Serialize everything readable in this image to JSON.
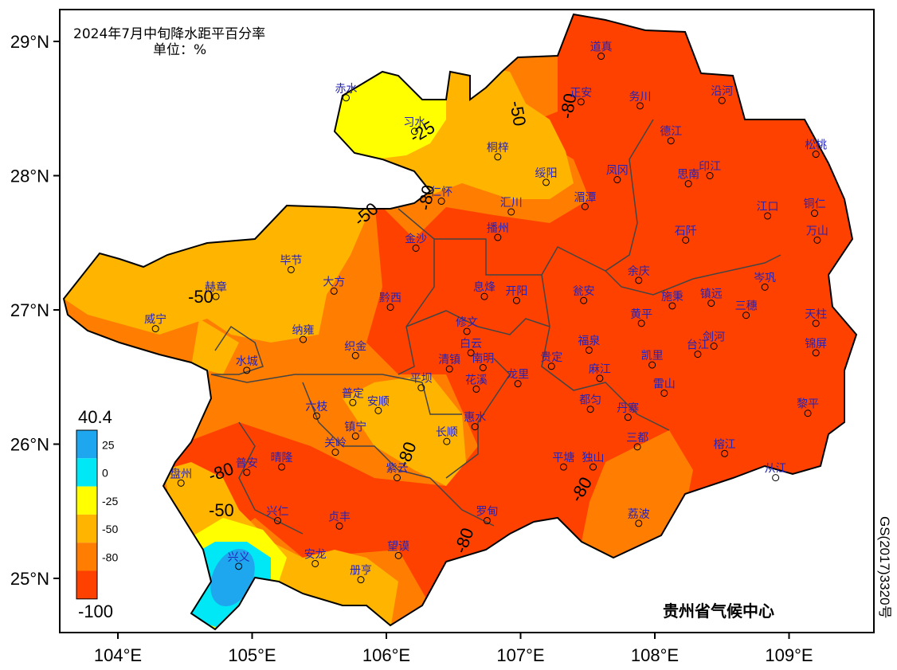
{
  "title": "2024年7月中旬降水距平百分率",
  "unit": "单位：%",
  "organization": "贵州省气候中心",
  "approval_number": "GS(2017)3320号",
  "latitude_labels": [
    "29°N",
    "28°N",
    "27°N",
    "26°N",
    "25°N"
  ],
  "longitude_labels": [
    "104°E",
    "105°E",
    "106°E",
    "107°E",
    "108°E",
    "109°E"
  ],
  "legend": {
    "max": "40.4",
    "min": "-100",
    "ticks": [
      "25",
      "0",
      "-25",
      "-50",
      "-80"
    ],
    "colors": [
      "#1ea7ee",
      "#00e8f5",
      "#ffff00",
      "#ffb400",
      "#ff7d00",
      "#ff4100"
    ]
  },
  "contour_labels": [
    "-50",
    "-80",
    "-25",
    "-80",
    "-50",
    "-50",
    "-80",
    "-50",
    "-80",
    "-80",
    "-80"
  ],
  "stations": [
    {
      "name": "道真",
      "lon": 107.6,
      "lat": 28.89
    },
    {
      "name": "赤水",
      "lon": 105.7,
      "lat": 28.58
    },
    {
      "name": "正安",
      "lon": 107.45,
      "lat": 28.55
    },
    {
      "name": "务川",
      "lon": 107.89,
      "lat": 28.52
    },
    {
      "name": "沿河",
      "lon": 108.5,
      "lat": 28.56
    },
    {
      "name": "习水",
      "lon": 106.21,
      "lat": 28.33
    },
    {
      "name": "德江",
      "lon": 108.12,
      "lat": 28.26
    },
    {
      "name": "松桃",
      "lon": 109.2,
      "lat": 28.16
    },
    {
      "name": "桐梓",
      "lon": 106.83,
      "lat": 28.14
    },
    {
      "name": "绥阳",
      "lon": 107.19,
      "lat": 27.95
    },
    {
      "name": "凤冈",
      "lon": 107.72,
      "lat": 27.97
    },
    {
      "name": "印江",
      "lon": 108.41,
      "lat": 28.0
    },
    {
      "name": "思南",
      "lon": 108.25,
      "lat": 27.94
    },
    {
      "name": "仁怀",
      "lon": 106.41,
      "lat": 27.81
    },
    {
      "name": "汇川",
      "lon": 106.93,
      "lat": 27.73
    },
    {
      "name": "湄潭",
      "lon": 107.48,
      "lat": 27.77
    },
    {
      "name": "江口",
      "lon": 108.84,
      "lat": 27.7
    },
    {
      "name": "铜仁",
      "lon": 109.19,
      "lat": 27.72
    },
    {
      "name": "金沙",
      "lon": 106.22,
      "lat": 27.46
    },
    {
      "name": "播州",
      "lon": 106.83,
      "lat": 27.54
    },
    {
      "name": "石阡",
      "lon": 108.23,
      "lat": 27.52
    },
    {
      "name": "万山",
      "lon": 109.21,
      "lat": 27.52
    },
    {
      "name": "毕节",
      "lon": 105.29,
      "lat": 27.3
    },
    {
      "name": "余庆",
      "lon": 107.88,
      "lat": 27.22
    },
    {
      "name": "岑巩",
      "lon": 108.82,
      "lat": 27.17
    },
    {
      "name": "赫章",
      "lon": 104.73,
      "lat": 27.1
    },
    {
      "name": "大方",
      "lon": 105.61,
      "lat": 27.14
    },
    {
      "name": "黔西",
      "lon": 106.03,
      "lat": 27.02
    },
    {
      "name": "息烽",
      "lon": 106.73,
      "lat": 27.1
    },
    {
      "name": "开阳",
      "lon": 106.97,
      "lat": 27.07
    },
    {
      "name": "瓮安",
      "lon": 107.47,
      "lat": 27.07
    },
    {
      "name": "施秉",
      "lon": 108.13,
      "lat": 27.03
    },
    {
      "name": "镇远",
      "lon": 108.42,
      "lat": 27.05
    },
    {
      "name": "三穗",
      "lon": 108.68,
      "lat": 26.96
    },
    {
      "name": "天柱",
      "lon": 109.2,
      "lat": 26.9
    },
    {
      "name": "威宁",
      "lon": 104.28,
      "lat": 26.86
    },
    {
      "name": "黄平",
      "lon": 107.9,
      "lat": 26.9
    },
    {
      "name": "修文",
      "lon": 106.6,
      "lat": 26.84
    },
    {
      "name": "纳雍",
      "lon": 105.38,
      "lat": 26.78
    },
    {
      "name": "福泉",
      "lon": 107.51,
      "lat": 26.7
    },
    {
      "name": "剑河",
      "lon": 108.44,
      "lat": 26.73
    },
    {
      "name": "台江",
      "lon": 108.32,
      "lat": 26.67
    },
    {
      "name": "织金",
      "lon": 105.77,
      "lat": 26.66
    },
    {
      "name": "白云",
      "lon": 106.63,
      "lat": 26.68
    },
    {
      "name": "南明",
      "lon": 106.72,
      "lat": 26.57
    },
    {
      "name": "清镇",
      "lon": 106.47,
      "lat": 26.56
    },
    {
      "name": "水城",
      "lon": 104.96,
      "lat": 26.55
    },
    {
      "name": "贵定",
      "lon": 107.23,
      "lat": 26.58
    },
    {
      "name": "凯里",
      "lon": 107.98,
      "lat": 26.59
    },
    {
      "name": "锦屏",
      "lon": 109.2,
      "lat": 26.68
    },
    {
      "name": "麻江",
      "lon": 107.59,
      "lat": 26.49
    },
    {
      "name": "雷山",
      "lon": 108.07,
      "lat": 26.38
    },
    {
      "name": "花溪",
      "lon": 106.67,
      "lat": 26.41
    },
    {
      "name": "龙里",
      "lon": 106.98,
      "lat": 26.45
    },
    {
      "name": "平坝",
      "lon": 106.26,
      "lat": 26.42
    },
    {
      "name": "都匀",
      "lon": 107.52,
      "lat": 26.26
    },
    {
      "name": "普定",
      "lon": 105.75,
      "lat": 26.31
    },
    {
      "name": "安顺",
      "lon": 105.94,
      "lat": 26.25
    },
    {
      "name": "六枝",
      "lon": 105.48,
      "lat": 26.21
    },
    {
      "name": "黎平",
      "lon": 109.14,
      "lat": 26.23
    },
    {
      "name": "丹寨",
      "lon": 107.8,
      "lat": 26.2
    },
    {
      "name": "惠水",
      "lon": 106.66,
      "lat": 26.13
    },
    {
      "name": "镇宁",
      "lon": 105.77,
      "lat": 26.06
    },
    {
      "name": "长顺",
      "lon": 106.45,
      "lat": 26.02
    },
    {
      "name": "关岭",
      "lon": 105.62,
      "lat": 25.94
    },
    {
      "name": "三都",
      "lon": 107.87,
      "lat": 25.98
    },
    {
      "name": "榕江",
      "lon": 108.52,
      "lat": 25.93
    },
    {
      "name": "晴隆",
      "lon": 105.22,
      "lat": 25.83
    },
    {
      "name": "平塘",
      "lon": 107.32,
      "lat": 25.83
    },
    {
      "name": "独山",
      "lon": 107.54,
      "lat": 25.83
    },
    {
      "name": "从江",
      "lon": 108.9,
      "lat": 25.75
    },
    {
      "name": "盘州",
      "lon": 104.47,
      "lat": 25.71
    },
    {
      "name": "普安",
      "lon": 104.96,
      "lat": 25.79
    },
    {
      "name": "紫云",
      "lon": 106.08,
      "lat": 25.75
    },
    {
      "name": "兴仁",
      "lon": 105.19,
      "lat": 25.43
    },
    {
      "name": "贞丰",
      "lon": 105.65,
      "lat": 25.39
    },
    {
      "name": "罗甸",
      "lon": 106.75,
      "lat": 25.43
    },
    {
      "name": "荔波",
      "lon": 107.88,
      "lat": 25.41
    },
    {
      "name": "望谟",
      "lon": 106.09,
      "lat": 25.17
    },
    {
      "name": "安龙",
      "lon": 105.47,
      "lat": 25.11
    },
    {
      "name": "兴义",
      "lon": 104.9,
      "lat": 25.09
    },
    {
      "name": "册亨",
      "lon": 105.81,
      "lat": 24.99
    }
  ]
}
